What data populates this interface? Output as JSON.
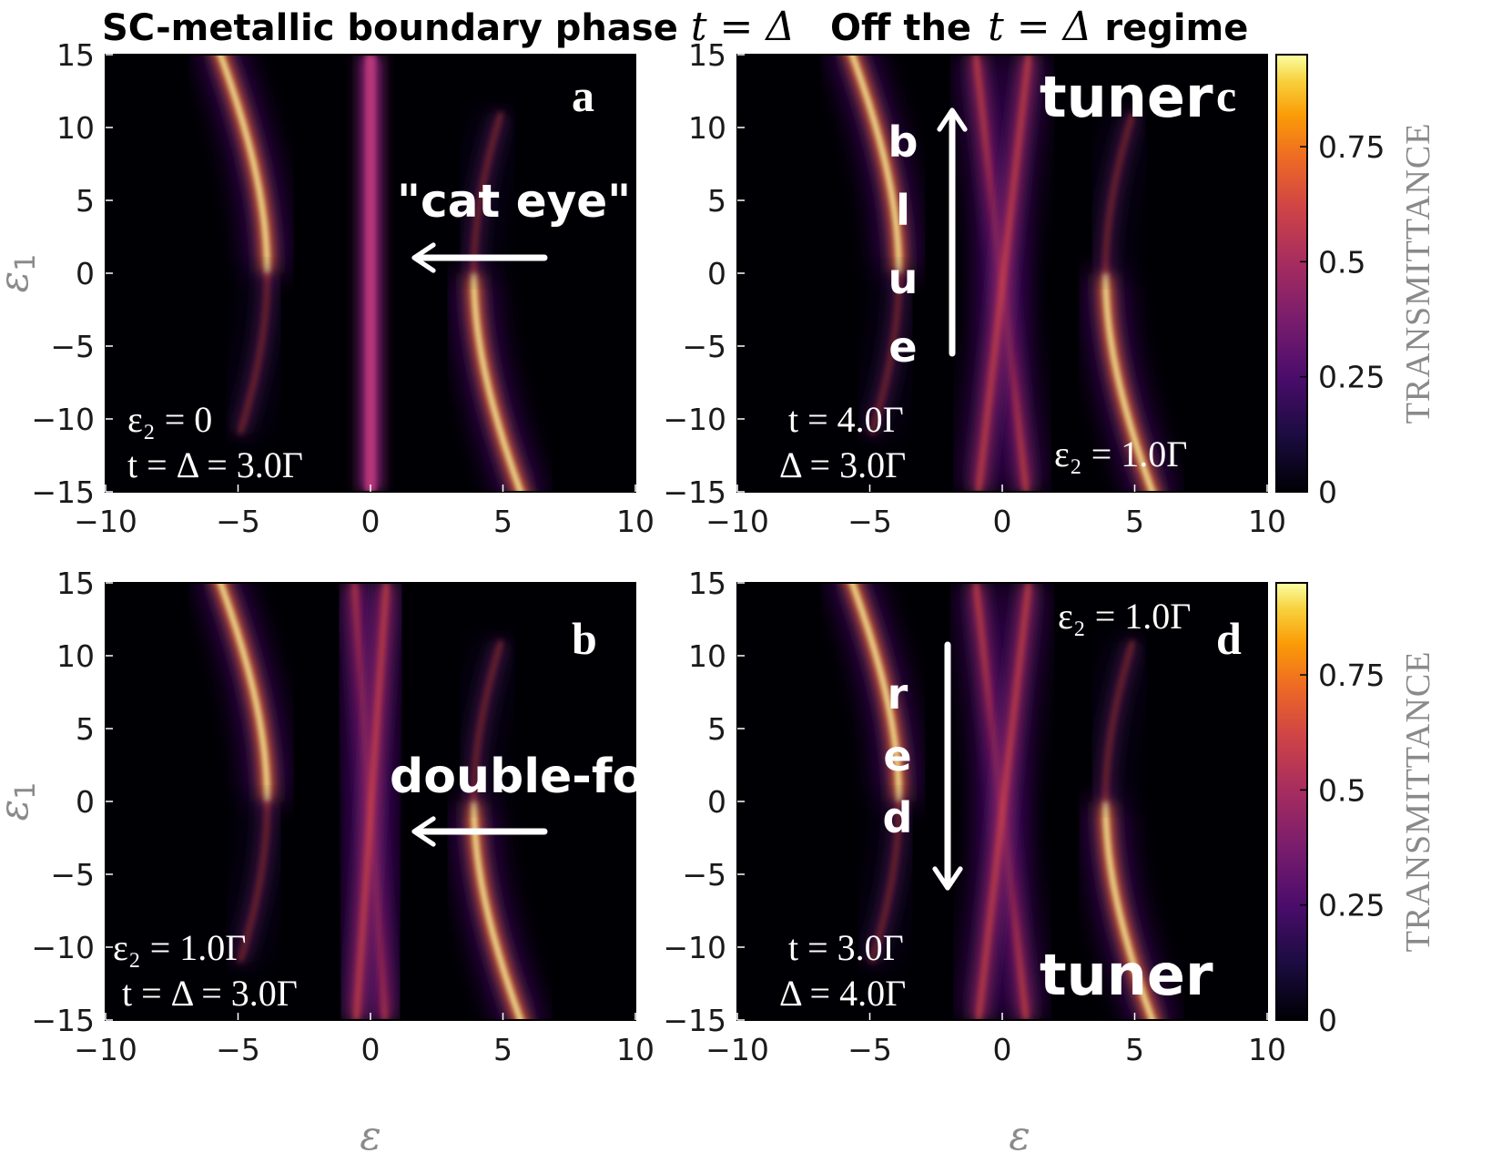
{
  "chart_data": [
    {
      "type": "heatmap",
      "panel": "a",
      "title": "SC-metallic boundary phase t = Δ",
      "xlabel": "ε",
      "ylabel": "ε1",
      "xlim": [
        -10,
        10
      ],
      "ylim": [
        -15,
        15
      ],
      "xticks": [
        "−10",
        "−5",
        "0",
        "5",
        "10"
      ],
      "yticks": [
        "15",
        "10",
        "5",
        "0",
        "−5",
        "−10",
        "−15"
      ],
      "annotations": [
        "ε2 = 0",
        "t = Δ = 3.0Γ",
        "\"cat eye\""
      ],
      "features": [
        {
          "name": "left-branch",
          "vertex_x": -4,
          "vertex_y": 0,
          "x_at_ylim": -8
        },
        {
          "name": "right-branch",
          "vertex_x": 4,
          "vertex_y": 0,
          "x_at_ylim": 8
        },
        {
          "name": "central-line",
          "x": 0
        }
      ]
    },
    {
      "type": "heatmap",
      "panel": "b",
      "xlabel": "ε",
      "ylabel": "ε1",
      "xlim": [
        -10,
        10
      ],
      "ylim": [
        -15,
        15
      ],
      "xticks": [
        "−10",
        "−5",
        "0",
        "5",
        "10"
      ],
      "yticks": [
        "15",
        "10",
        "5",
        "0",
        "−5",
        "−10",
        "−15"
      ],
      "annotations": [
        "ε2 = 1.0Γ",
        "t = Δ = 3.0Γ",
        "double-fork"
      ],
      "features": [
        {
          "name": "left-branch",
          "vertex_x": -4,
          "vertex_y": 0
        },
        {
          "name": "right-branch",
          "vertex_x": 4,
          "vertex_y": 0
        },
        {
          "name": "crossing-lines",
          "x_at_top": [
            -0.6,
            0.6
          ],
          "x_at_bottom": [
            0.6,
            -0.6
          ]
        }
      ]
    },
    {
      "type": "heatmap",
      "panel": "c",
      "title": "Off the t = Δ regime",
      "xlabel": "ε",
      "xlim": [
        -10,
        10
      ],
      "ylim": [
        -15,
        15
      ],
      "xticks": [
        "−10",
        "−5",
        "0",
        "5",
        "10"
      ],
      "yticks": [
        "15",
        "10",
        "5",
        "0",
        "−5",
        "−10",
        "−15"
      ],
      "annotations": [
        "t = 4.0Γ",
        "Δ = 3.0Γ",
        "ε2 = 1.0Γ",
        "tuner",
        "blue"
      ],
      "colorbar": {
        "label": "TRANSMITTANCE",
        "ticks": [
          "0",
          "0.25",
          "0.5",
          "0.75"
        ],
        "range": [
          0,
          0.95
        ],
        "colormap": "inferno"
      }
    },
    {
      "type": "heatmap",
      "panel": "d",
      "xlabel": "ε",
      "xlim": [
        -10,
        10
      ],
      "ylim": [
        -15,
        15
      ],
      "xticks": [
        "−10",
        "−5",
        "0",
        "5",
        "10"
      ],
      "yticks": [
        "15",
        "10",
        "5",
        "0",
        "−5",
        "−10",
        "−15"
      ],
      "annotations": [
        "t = 3.0Γ",
        "Δ = 4.0Γ",
        "ε2 = 1.0Γ",
        "tuner",
        "red"
      ],
      "colorbar": {
        "label": "TRANSMITTANCE",
        "ticks": [
          "0",
          "0.25",
          "0.5",
          "0.75"
        ],
        "range": [
          0,
          0.95
        ],
        "colormap": "inferno"
      }
    }
  ],
  "titles": {
    "left": "SC-metallic boundary phase",
    "left_math": "t = Δ",
    "right_pre": "Off the",
    "right_math": "t = Δ",
    "right_post": "regime"
  },
  "axis": {
    "xlabel": "ε",
    "ylabel_main": "ε",
    "ylabel_sub": "1"
  },
  "panels": {
    "a": {
      "letter": "a",
      "ann1": "ε₂ = 0",
      "ann2": "t = Δ = 3.0Γ",
      "callout": "\"cat eye\""
    },
    "b": {
      "letter": "b",
      "ann1": "ε₂ = 1.0Γ",
      "ann2": "t = Δ = 3.0Γ",
      "callout": "double-fork"
    },
    "c": {
      "letter": "c",
      "ann1": "t = 4.0Γ",
      "ann2": "Δ = 3.0Γ",
      "ann3": "ε₂ = 1.0Γ",
      "tuner": "tuner",
      "vertical": [
        "b",
        "l",
        "u",
        "e"
      ]
    },
    "d": {
      "letter": "d",
      "ann1": "t = 3.0Γ",
      "ann2": "Δ = 4.0Γ",
      "ann3": "ε₂ = 1.0Γ",
      "tuner": "tuner",
      "vertical": [
        "r",
        "e",
        "d"
      ]
    }
  },
  "colorbar": {
    "label": "TRANSMITTANCE",
    "ticks": [
      "0",
      "0.25",
      "0.5",
      "0.75"
    ]
  },
  "colors": {
    "background": "#000004",
    "low": "#3b0f70",
    "mid": "#b73779",
    "high": "#fc8961",
    "peak": "#fcfdbf"
  }
}
